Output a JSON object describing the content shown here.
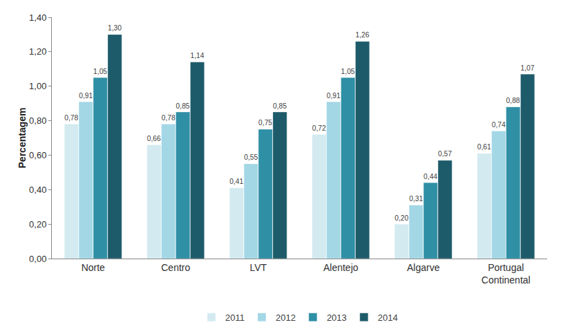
{
  "chart_data": {
    "type": "bar",
    "y_label": "Percentagem",
    "categories": [
      "Norte",
      "Centro",
      "LVT",
      "Alentejo",
      "Algarve",
      "Portugal Continental"
    ],
    "series": [
      {
        "name": "2011",
        "color": "#d3eaf0",
        "values": [
          0.78,
          0.66,
          0.41,
          0.72,
          0.2,
          0.61
        ],
        "value_labels": [
          "0,78",
          "0,66",
          "0,41",
          "0,72",
          "0,20",
          "0,61"
        ]
      },
      {
        "name": "2012",
        "color": "#a3d7e6",
        "values": [
          0.91,
          0.78,
          0.55,
          0.91,
          0.31,
          0.74
        ],
        "value_labels": [
          "0,91",
          "0,78",
          "0,55",
          "0,91",
          "0,31",
          "0,74"
        ]
      },
      {
        "name": "2013",
        "color": "#2f8fa5",
        "values": [
          1.05,
          0.85,
          0.75,
          1.05,
          0.44,
          0.88
        ],
        "value_labels": [
          "1,05",
          "0,85",
          "0,75",
          "1,05",
          "0,44",
          "0,88"
        ]
      },
      {
        "name": "2014",
        "color": "#1e5b6a",
        "values": [
          1.3,
          1.14,
          0.85,
          1.26,
          0.57,
          1.07
        ],
        "value_labels": [
          "1,30",
          "1,14",
          "0,85",
          "1,26",
          "0,57",
          "1,07"
        ]
      }
    ],
    "ylim": [
      0,
      1.4
    ],
    "yticks": [
      {
        "value": 0,
        "label": "0,00"
      },
      {
        "value": 0.2,
        "label": "0,20"
      },
      {
        "value": 0.4,
        "label": "0,40"
      },
      {
        "value": 0.6,
        "label": "0,60"
      },
      {
        "value": 0.8,
        "label": "0,80"
      },
      {
        "value": 1.0,
        "label": "1,00"
      },
      {
        "value": 1.2,
        "label": "1,20"
      },
      {
        "value": 1.4,
        "label": "1,40"
      }
    ],
    "grid": false,
    "legend": "bottom",
    "data_labels": true
  }
}
